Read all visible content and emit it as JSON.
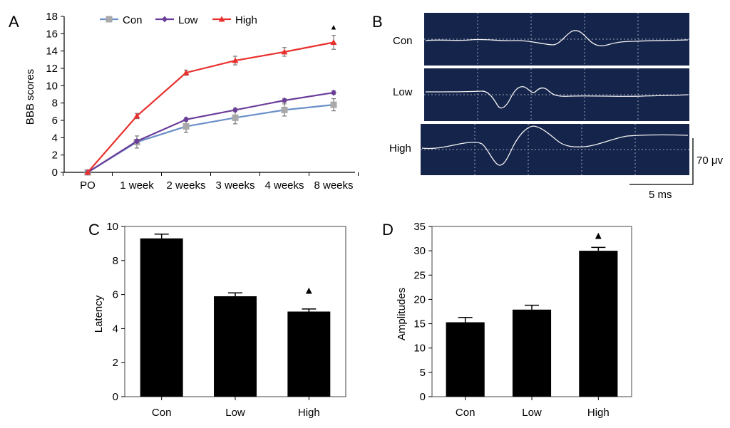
{
  "figure": {
    "panels": [
      "A",
      "B",
      "C",
      "D"
    ]
  },
  "chart_data": [
    {
      "panel": "A",
      "type": "line",
      "categories": [
        "PO",
        "1 week",
        "2 weeks",
        "3 weeks",
        "4 weeks",
        "8 weeks"
      ],
      "ylabel": "BBB scores",
      "ylim": [
        0,
        18
      ],
      "yticks": [
        "0",
        "2",
        "4",
        "6",
        "8",
        "10",
        "12",
        "14",
        "16",
        "18"
      ],
      "legend_position": "top",
      "series": [
        {
          "name": "Con",
          "color": "#6b8fc9",
          "marker": "square",
          "values": [
            0,
            3.5,
            5.3,
            6.3,
            7.2,
            7.8
          ],
          "errors": [
            0.2,
            0.7,
            0.7,
            0.7,
            0.7,
            0.7
          ]
        },
        {
          "name": "Low",
          "color": "#6a3d9a",
          "marker": "diamond",
          "values": [
            0,
            3.6,
            6.1,
            7.2,
            8.3,
            9.2
          ],
          "errors": [
            0.1,
            0.2,
            0.2,
            0.2,
            0.2,
            0.2
          ]
        },
        {
          "name": "High",
          "color": "#e8312e",
          "marker": "triangle",
          "values": [
            0,
            6.5,
            11.5,
            12.9,
            13.9,
            15.0
          ],
          "errors": [
            0.1,
            0.3,
            0.3,
            0.5,
            0.5,
            0.8
          ]
        }
      ],
      "significance_marker": {
        "symbol": "▲",
        "category": "8 weeks",
        "y": 16.8
      }
    },
    {
      "panel": "C",
      "type": "bar",
      "categories": [
        "Con",
        "Low",
        "High"
      ],
      "values": [
        9.3,
        5.9,
        5.0
      ],
      "errors": [
        0.25,
        0.2,
        0.15
      ],
      "ylabel": "Latency",
      "ylim": [
        0,
        10
      ],
      "yticks": [
        "0",
        "2",
        "4",
        "6",
        "8",
        "10"
      ],
      "bar_color": "#000000",
      "significance_marker": {
        "symbol": "▲",
        "category": "High",
        "y": 6.3
      }
    },
    {
      "panel": "D",
      "type": "bar",
      "categories": [
        "Con",
        "Low",
        "High"
      ],
      "values": [
        15.3,
        17.9,
        30.0
      ],
      "errors": [
        1.0,
        0.9,
        0.7
      ],
      "ylabel": "Amplitudes",
      "ylim": [
        0,
        35
      ],
      "yticks": [
        "0",
        "5",
        "10",
        "15",
        "20",
        "25",
        "30",
        "35"
      ],
      "bar_color": "#000000",
      "significance_marker": {
        "symbol": "▲",
        "category": "High",
        "y": 33.3
      }
    }
  ],
  "traces": {
    "panel": "B",
    "background": "#15244a",
    "rows": [
      {
        "label": "Con"
      },
      {
        "label": "Low"
      },
      {
        "label": "High"
      }
    ],
    "scale_bar": {
      "voltage_label": "70 μv",
      "time_label": "5 ms"
    }
  }
}
